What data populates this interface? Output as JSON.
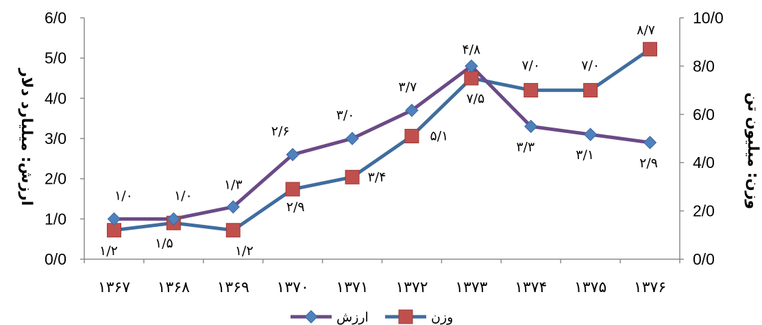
{
  "chart_data": {
    "type": "line",
    "categories": [
      "۱۳۶۷",
      "۱۳۶۸",
      "۱۳۶۹",
      "۱۳۷۰",
      "۱۳۷۱",
      "۱۳۷۲",
      "۱۳۷۳",
      "۱۳۷۴",
      "۱۳۷۵",
      "۱۳۷۶"
    ],
    "y_left": {
      "label": "ارزش: میلیارد دلار",
      "min": 0,
      "max": 6,
      "step": 1,
      "tick_labels": [
        "0/0",
        "1/0",
        "2/0",
        "3/0",
        "4/0",
        "5/0",
        "6/0"
      ]
    },
    "y_right": {
      "label": "وزن: میلیون تن",
      "min": 0,
      "max": 10,
      "step": 2,
      "tick_labels": [
        "0/0",
        "2/0",
        "4/0",
        "6/0",
        "8/0",
        "10/0"
      ]
    },
    "series": [
      {
        "name": "ارزش",
        "axis": "left",
        "color": "#6b4a87",
        "marker_color": "#4f81bd",
        "marker": "diamond",
        "values": [
          1.0,
          1.0,
          1.3,
          2.6,
          3.0,
          3.7,
          4.8,
          3.3,
          3.1,
          2.9
        ],
        "labels": [
          "۱/۰",
          "۱/۰",
          "۱/۳",
          "۲/۶",
          "۳/۰",
          "۳/۷",
          "۴/۸",
          "۳/۳",
          "۳/۱",
          "۲/۹"
        ]
      },
      {
        "name": "وزن",
        "axis": "right",
        "color": "#3f6d9f",
        "marker_color": "#c0504d",
        "marker": "square",
        "values": [
          1.2,
          1.5,
          1.2,
          2.9,
          3.4,
          5.1,
          7.5,
          7.0,
          7.0,
          8.7
        ],
        "labels": [
          "۱/۲",
          "۱/۵",
          "۱/۲",
          "۲/۹",
          "۳/۴",
          "۵/۱",
          "۷/۵",
          "۷/۰",
          "۷/۰",
          "۸/۷"
        ]
      }
    ],
    "legend": {
      "position": "bottom"
    }
  }
}
